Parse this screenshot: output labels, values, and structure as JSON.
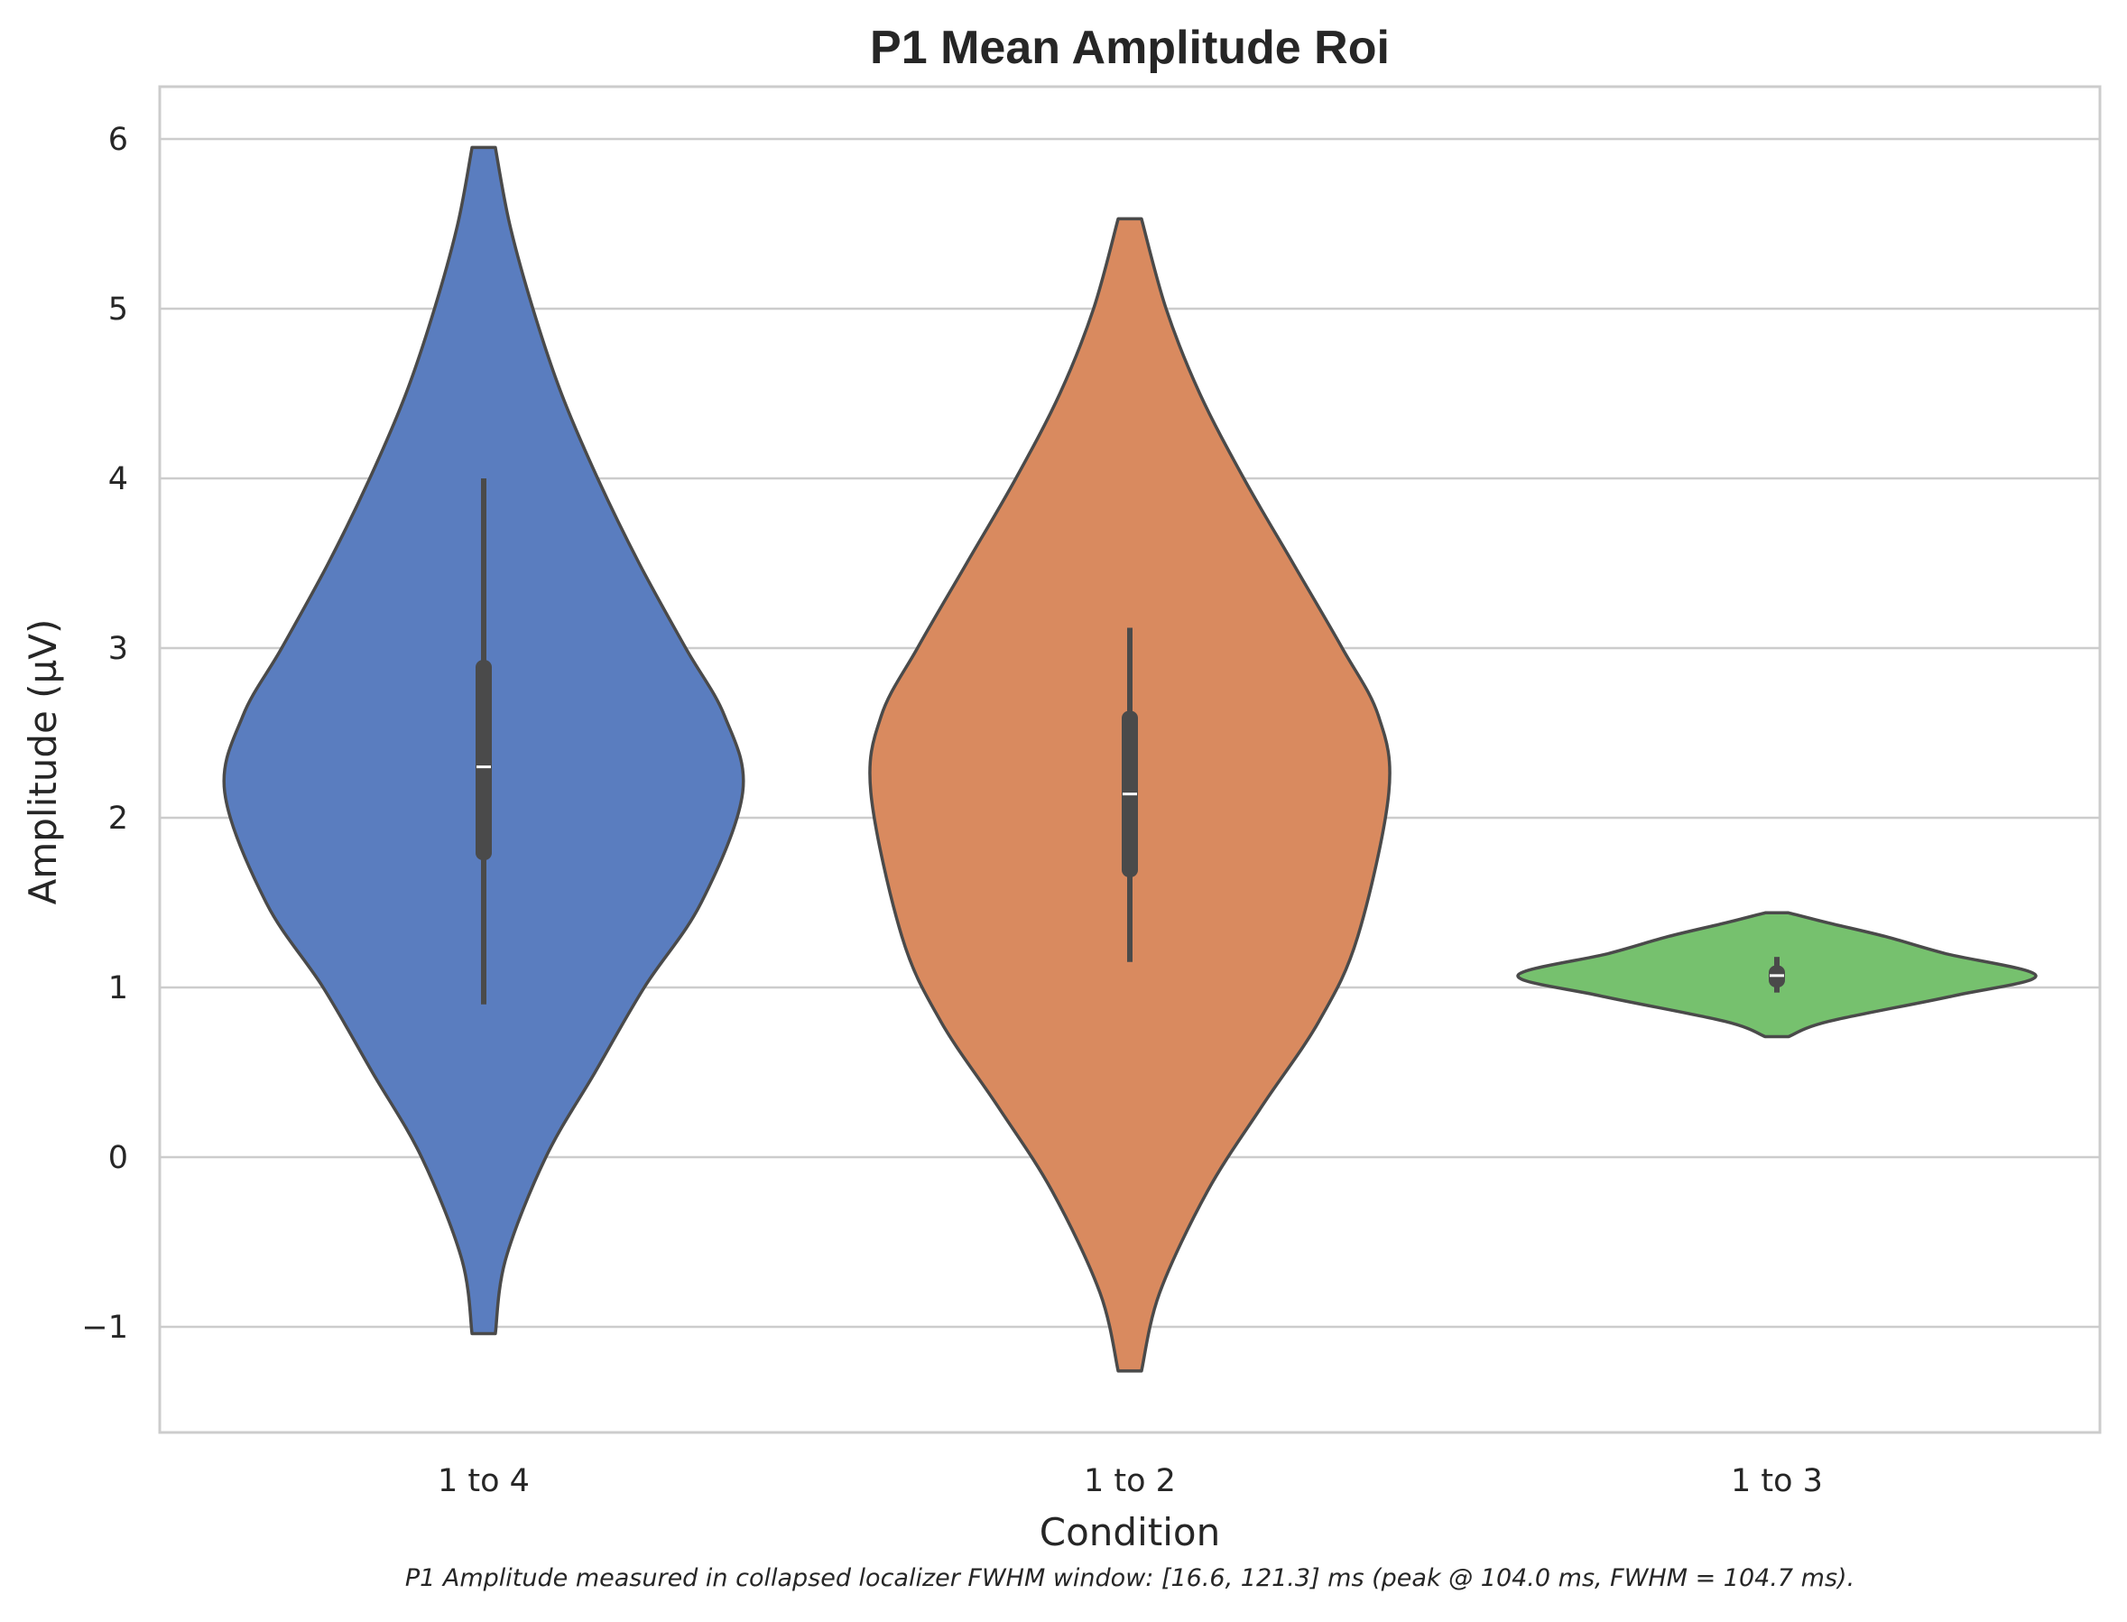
{
  "chart_data": {
    "type": "violin",
    "title": "P1 Mean Amplitude Roi",
    "xlabel": "Condition",
    "ylabel": "Amplitude (µV)",
    "caption": "P1 Amplitude measured in collapsed localizer FWHM window: [16.6, 121.3] ms (peak @ 104.0 ms, FWHM = 104.7 ms).",
    "ylim": [
      -1.6,
      6.3
    ],
    "yticks": [
      -1,
      0,
      1,
      2,
      3,
      4,
      5,
      6
    ],
    "ytick_labels": [
      "−1",
      "0",
      "1",
      "2",
      "3",
      "4",
      "5",
      "6"
    ],
    "grid": true,
    "categories": [
      "1 to 4",
      "1 to 2",
      "1 to 3"
    ],
    "series": [
      {
        "category": "1 to 4",
        "color": "#5A7DBF",
        "min": -1.04,
        "max": 5.95,
        "density_profile": [
          [
            -1.04,
            0.045
          ],
          [
            -0.6,
            0.085
          ],
          [
            0.0,
            0.24
          ],
          [
            0.5,
            0.43
          ],
          [
            1.0,
            0.62
          ],
          [
            1.5,
            0.84
          ],
          [
            2.15,
            1.0
          ],
          [
            2.6,
            0.93
          ],
          [
            3.0,
            0.78
          ],
          [
            3.5,
            0.6
          ],
          [
            4.0,
            0.44
          ],
          [
            4.5,
            0.3
          ],
          [
            5.0,
            0.19
          ],
          [
            5.5,
            0.1
          ],
          [
            5.95,
            0.045
          ]
        ],
        "whisker_low": 0.9,
        "q1": 1.75,
        "median": 2.3,
        "q3": 2.93,
        "whisker_high": 4.0
      },
      {
        "category": "1 to 2",
        "color": "#D98A5F",
        "min": -1.26,
        "max": 5.53,
        "density_profile": [
          [
            -1.26,
            0.045
          ],
          [
            -0.8,
            0.115
          ],
          [
            -0.2,
            0.3
          ],
          [
            0.3,
            0.51
          ],
          [
            0.8,
            0.73
          ],
          [
            1.3,
            0.88
          ],
          [
            2.15,
            1.0
          ],
          [
            2.6,
            0.96
          ],
          [
            3.0,
            0.82
          ],
          [
            3.5,
            0.63
          ],
          [
            4.0,
            0.44
          ],
          [
            4.5,
            0.27
          ],
          [
            5.0,
            0.14
          ],
          [
            5.53,
            0.045
          ]
        ],
        "whisker_low": 1.15,
        "q1": 1.65,
        "median": 2.14,
        "q3": 2.63,
        "whisker_high": 3.12
      },
      {
        "category": "1 to 3",
        "color": "#76C16E",
        "min": 0.71,
        "max": 1.44,
        "density_profile": [
          [
            0.71,
            0.045
          ],
          [
            0.8,
            0.2
          ],
          [
            0.95,
            0.68
          ],
          [
            1.07,
            1.0
          ],
          [
            1.2,
            0.65
          ],
          [
            1.3,
            0.42
          ],
          [
            1.38,
            0.2
          ],
          [
            1.44,
            0.045
          ]
        ],
        "whisker_low": 0.97,
        "q1": 1.0,
        "median": 1.07,
        "q3": 1.13,
        "whisker_high": 1.18
      }
    ]
  }
}
